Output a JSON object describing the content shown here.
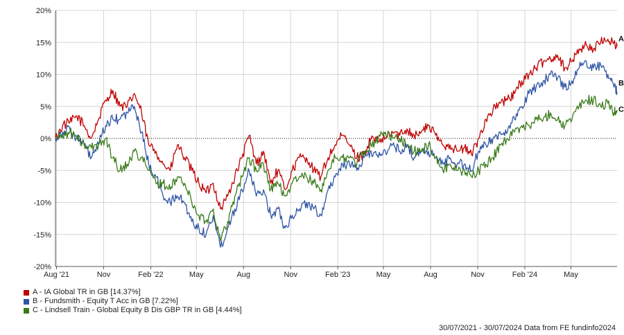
{
  "chart_data": {
    "type": "line",
    "ylim": [
      -20,
      20
    ],
    "y_ticks": [
      20,
      15,
      10,
      5,
      0,
      -5,
      -10,
      -15,
      -20
    ],
    "y_tick_labels": [
      "20%",
      "15%",
      "10%",
      "5%",
      "0%",
      "-5%",
      "-10%",
      "-15%",
      "-20%"
    ],
    "x_range": [
      "2021-07-30",
      "2024-07-30"
    ],
    "x_ticks": [
      {
        "label": "Aug '21",
        "date": "2021-08-01"
      },
      {
        "label": "Nov",
        "date": "2021-11-01"
      },
      {
        "label": "Feb '22",
        "date": "2022-02-01"
      },
      {
        "label": "May",
        "date": "2022-05-01"
      },
      {
        "label": "Aug",
        "date": "2022-08-01"
      },
      {
        "label": "Nov",
        "date": "2022-11-01"
      },
      {
        "label": "Feb '23",
        "date": "2023-02-01"
      },
      {
        "label": "May",
        "date": "2023-05-01"
      },
      {
        "label": "Aug",
        "date": "2023-08-01"
      },
      {
        "label": "Nov",
        "date": "2023-11-01"
      },
      {
        "label": "Feb '24",
        "date": "2024-02-01"
      },
      {
        "label": "May",
        "date": "2024-05-01"
      }
    ],
    "grid": true,
    "zero_line": "dotted",
    "series": [
      {
        "name": "A - IA Global TR in GB [14.37%]",
        "end_label": "A",
        "color": "#c00000",
        "points": [
          [
            "2021-07-30",
            0
          ],
          [
            "2021-08-13",
            2
          ],
          [
            "2021-08-27",
            2.5
          ],
          [
            "2021-09-10",
            3.5
          ],
          [
            "2021-09-24",
            2
          ],
          [
            "2021-10-08",
            0
          ],
          [
            "2021-10-22",
            3
          ],
          [
            "2021-11-05",
            6
          ],
          [
            "2021-11-19",
            7.5
          ],
          [
            "2021-12-03",
            5
          ],
          [
            "2021-12-17",
            5
          ],
          [
            "2021-12-31",
            7
          ],
          [
            "2022-01-14",
            4
          ],
          [
            "2022-01-28",
            -1
          ],
          [
            "2022-02-11",
            -2
          ],
          [
            "2022-02-25",
            -4
          ],
          [
            "2022-03-11",
            -5
          ],
          [
            "2022-03-25",
            -1
          ],
          [
            "2022-04-08",
            -3
          ],
          [
            "2022-04-22",
            -5
          ],
          [
            "2022-05-06",
            -7
          ],
          [
            "2022-05-20",
            -8.5
          ],
          [
            "2022-06-03",
            -7
          ],
          [
            "2022-06-17",
            -11
          ],
          [
            "2022-07-01",
            -9
          ],
          [
            "2022-07-15",
            -6
          ],
          [
            "2022-07-29",
            -3
          ],
          [
            "2022-08-12",
            0.5
          ],
          [
            "2022-08-26",
            -4
          ],
          [
            "2022-09-09",
            -2
          ],
          [
            "2022-09-23",
            -7
          ],
          [
            "2022-10-07",
            -5
          ],
          [
            "2022-10-21",
            -8
          ],
          [
            "2022-11-04",
            -5
          ],
          [
            "2022-11-18",
            -3
          ],
          [
            "2022-12-02",
            -3
          ],
          [
            "2022-12-16",
            -5
          ],
          [
            "2022-12-30",
            -6
          ],
          [
            "2023-01-13",
            -3
          ],
          [
            "2023-01-27",
            -1
          ],
          [
            "2023-02-10",
            0.5
          ],
          [
            "2023-02-24",
            -1
          ],
          [
            "2023-03-10",
            -3
          ],
          [
            "2023-03-24",
            -2.5
          ],
          [
            "2023-04-07",
            0
          ],
          [
            "2023-04-21",
            -0.5
          ],
          [
            "2023-05-05",
            0
          ],
          [
            "2023-05-19",
            1
          ],
          [
            "2023-06-02",
            0.5
          ],
          [
            "2023-06-16",
            1.5
          ],
          [
            "2023-06-30",
            0.5
          ],
          [
            "2023-07-14",
            1
          ],
          [
            "2023-07-28",
            2
          ],
          [
            "2023-08-11",
            0.5
          ],
          [
            "2023-08-25",
            -1
          ],
          [
            "2023-09-08",
            -1
          ],
          [
            "2023-09-22",
            -2
          ],
          [
            "2023-10-06",
            -1.5
          ],
          [
            "2023-10-20",
            -2.5
          ],
          [
            "2023-11-03",
            0
          ],
          [
            "2023-11-17",
            3
          ],
          [
            "2023-12-01",
            4.5
          ],
          [
            "2023-12-15",
            5.5
          ],
          [
            "2023-12-29",
            6
          ],
          [
            "2024-01-12",
            7
          ],
          [
            "2024-01-26",
            9
          ],
          [
            "2024-02-09",
            10
          ],
          [
            "2024-02-23",
            11
          ],
          [
            "2024-03-08",
            12
          ],
          [
            "2024-03-22",
            12.5
          ],
          [
            "2024-04-05",
            13
          ],
          [
            "2024-04-19",
            11
          ],
          [
            "2024-05-03",
            12
          ],
          [
            "2024-05-17",
            14
          ],
          [
            "2024-05-31",
            14.5
          ],
          [
            "2024-06-14",
            14
          ],
          [
            "2024-06-28",
            15
          ],
          [
            "2024-07-12",
            15.5
          ],
          [
            "2024-07-24",
            15
          ],
          [
            "2024-07-30",
            14.37
          ]
        ]
      },
      {
        "name": "B - Fundsmith - Equity T Acc in GB [7.22%]",
        "end_label": "B",
        "color": "#2f55a4",
        "points": [
          [
            "2021-07-30",
            0
          ],
          [
            "2021-08-13",
            1
          ],
          [
            "2021-08-27",
            1.5
          ],
          [
            "2021-09-10",
            0
          ],
          [
            "2021-09-24",
            -1
          ],
          [
            "2021-10-08",
            -3
          ],
          [
            "2021-10-22",
            -1
          ],
          [
            "2021-11-05",
            2
          ],
          [
            "2021-11-19",
            3
          ],
          [
            "2021-12-03",
            3
          ],
          [
            "2021-12-17",
            4
          ],
          [
            "2021-12-31",
            5
          ],
          [
            "2022-01-14",
            1
          ],
          [
            "2022-01-28",
            -4
          ],
          [
            "2022-02-11",
            -6
          ],
          [
            "2022-02-25",
            -9
          ],
          [
            "2022-03-11",
            -10
          ],
          [
            "2022-03-25",
            -9
          ],
          [
            "2022-04-08",
            -10
          ],
          [
            "2022-04-22",
            -13
          ],
          [
            "2022-05-06",
            -14
          ],
          [
            "2022-05-20",
            -15
          ],
          [
            "2022-06-03",
            -12
          ],
          [
            "2022-06-17",
            -17
          ],
          [
            "2022-07-01",
            -14
          ],
          [
            "2022-07-15",
            -11
          ],
          [
            "2022-07-29",
            -8
          ],
          [
            "2022-08-12",
            -5
          ],
          [
            "2022-08-26",
            -9
          ],
          [
            "2022-09-09",
            -8
          ],
          [
            "2022-09-23",
            -12
          ],
          [
            "2022-10-07",
            -11
          ],
          [
            "2022-10-21",
            -14
          ],
          [
            "2022-11-04",
            -12
          ],
          [
            "2022-11-18",
            -11
          ],
          [
            "2022-12-02",
            -10
          ],
          [
            "2022-12-16",
            -11
          ],
          [
            "2022-12-30",
            -12
          ],
          [
            "2023-01-13",
            -8
          ],
          [
            "2023-01-27",
            -6
          ],
          [
            "2023-02-10",
            -4
          ],
          [
            "2023-02-24",
            -4
          ],
          [
            "2023-03-10",
            -5
          ],
          [
            "2023-03-24",
            -3
          ],
          [
            "2023-04-07",
            -2
          ],
          [
            "2023-04-21",
            -3
          ],
          [
            "2023-05-05",
            -2
          ],
          [
            "2023-05-19",
            -1
          ],
          [
            "2023-06-02",
            -2
          ],
          [
            "2023-06-16",
            -1
          ],
          [
            "2023-06-30",
            -3
          ],
          [
            "2023-07-14",
            -2
          ],
          [
            "2023-07-28",
            -2
          ],
          [
            "2023-08-11",
            -3
          ],
          [
            "2023-08-25",
            -4
          ],
          [
            "2023-09-08",
            -3
          ],
          [
            "2023-09-22",
            -4
          ],
          [
            "2023-10-06",
            -4
          ],
          [
            "2023-10-20",
            -5
          ],
          [
            "2023-11-03",
            -2
          ],
          [
            "2023-11-17",
            -1
          ],
          [
            "2023-12-01",
            0
          ],
          [
            "2023-12-15",
            1
          ],
          [
            "2023-12-29",
            1
          ],
          [
            "2024-01-12",
            3
          ],
          [
            "2024-01-26",
            5
          ],
          [
            "2024-02-09",
            7
          ],
          [
            "2024-02-23",
            8
          ],
          [
            "2024-03-08",
            9
          ],
          [
            "2024-03-22",
            10
          ],
          [
            "2024-04-05",
            9.5
          ],
          [
            "2024-04-19",
            8
          ],
          [
            "2024-05-03",
            9
          ],
          [
            "2024-05-17",
            11
          ],
          [
            "2024-05-31",
            12
          ],
          [
            "2024-06-14",
            11
          ],
          [
            "2024-06-28",
            11.5
          ],
          [
            "2024-07-12",
            10
          ],
          [
            "2024-07-24",
            8
          ],
          [
            "2024-07-30",
            7.22
          ]
        ]
      },
      {
        "name": "C - Lindsell Train - Global Equity B Dis GBP TR in GB [4.44%]",
        "end_label": "C",
        "color": "#3a7a1a",
        "points": [
          [
            "2021-07-30",
            0
          ],
          [
            "2021-08-13",
            0.5
          ],
          [
            "2021-08-27",
            1
          ],
          [
            "2021-09-10",
            0
          ],
          [
            "2021-09-24",
            -1
          ],
          [
            "2021-10-08",
            -1.5
          ],
          [
            "2021-10-22",
            -1
          ],
          [
            "2021-11-05",
            0
          ],
          [
            "2021-11-19",
            -3
          ],
          [
            "2021-12-03",
            -5
          ],
          [
            "2021-12-17",
            -4
          ],
          [
            "2021-12-31",
            -2
          ],
          [
            "2022-01-14",
            -3
          ],
          [
            "2022-01-28",
            -5
          ],
          [
            "2022-02-11",
            -7
          ],
          [
            "2022-02-25",
            -7
          ],
          [
            "2022-03-11",
            -8
          ],
          [
            "2022-03-25",
            -6
          ],
          [
            "2022-04-08",
            -7
          ],
          [
            "2022-04-22",
            -10
          ],
          [
            "2022-05-06",
            -12
          ],
          [
            "2022-05-20",
            -13
          ],
          [
            "2022-06-03",
            -11
          ],
          [
            "2022-06-17",
            -16
          ],
          [
            "2022-07-01",
            -13
          ],
          [
            "2022-07-15",
            -9
          ],
          [
            "2022-07-29",
            -6
          ],
          [
            "2022-08-12",
            -3
          ],
          [
            "2022-08-26",
            -5
          ],
          [
            "2022-09-09",
            -4
          ],
          [
            "2022-09-23",
            -8
          ],
          [
            "2022-10-07",
            -7
          ],
          [
            "2022-10-21",
            -9
          ],
          [
            "2022-11-04",
            -7
          ],
          [
            "2022-11-18",
            -6
          ],
          [
            "2022-12-02",
            -6
          ],
          [
            "2022-12-16",
            -7
          ],
          [
            "2022-12-30",
            -8
          ],
          [
            "2023-01-13",
            -5
          ],
          [
            "2023-01-27",
            -3
          ],
          [
            "2023-02-10",
            -3
          ],
          [
            "2023-02-24",
            -3
          ],
          [
            "2023-03-10",
            -4
          ],
          [
            "2023-03-24",
            -2
          ],
          [
            "2023-04-07",
            -1
          ],
          [
            "2023-04-21",
            0
          ],
          [
            "2023-05-05",
            1
          ],
          [
            "2023-05-19",
            0
          ],
          [
            "2023-06-02",
            0
          ],
          [
            "2023-06-16",
            -1
          ],
          [
            "2023-06-30",
            -2
          ],
          [
            "2023-07-14",
            -2
          ],
          [
            "2023-07-28",
            -1
          ],
          [
            "2023-08-11",
            -3
          ],
          [
            "2023-08-25",
            -5
          ],
          [
            "2023-09-08",
            -4
          ],
          [
            "2023-09-22",
            -5
          ],
          [
            "2023-10-06",
            -5
          ],
          [
            "2023-10-20",
            -6
          ],
          [
            "2023-11-03",
            -5
          ],
          [
            "2023-11-17",
            -4
          ],
          [
            "2023-12-01",
            -3
          ],
          [
            "2023-12-15",
            -1
          ],
          [
            "2023-12-29",
            0
          ],
          [
            "2024-01-12",
            1
          ],
          [
            "2024-01-26",
            2
          ],
          [
            "2024-02-09",
            2
          ],
          [
            "2024-02-23",
            3
          ],
          [
            "2024-03-08",
            3
          ],
          [
            "2024-03-22",
            4
          ],
          [
            "2024-04-05",
            3
          ],
          [
            "2024-04-19",
            2
          ],
          [
            "2024-05-03",
            3
          ],
          [
            "2024-05-17",
            5
          ],
          [
            "2024-05-31",
            6
          ],
          [
            "2024-06-14",
            6
          ],
          [
            "2024-06-28",
            5
          ],
          [
            "2024-07-12",
            5.5
          ],
          [
            "2024-07-24",
            4
          ],
          [
            "2024-07-30",
            4.44
          ]
        ]
      }
    ]
  },
  "legend": {
    "items": [
      {
        "label": "A - IA Global TR in GB [14.37%]",
        "color": "#c00000"
      },
      {
        "label": "B - Fundsmith - Equity T Acc in GB [7.22%]",
        "color": "#2f55a4"
      },
      {
        "label": "C - Lindsell Train - Global Equity B Dis GBP TR in GB [4.44%]",
        "color": "#3a7a1a"
      }
    ]
  },
  "footer": {
    "text": "30/07/2021 - 30/07/2024 Data from FE fundinfo2024"
  }
}
